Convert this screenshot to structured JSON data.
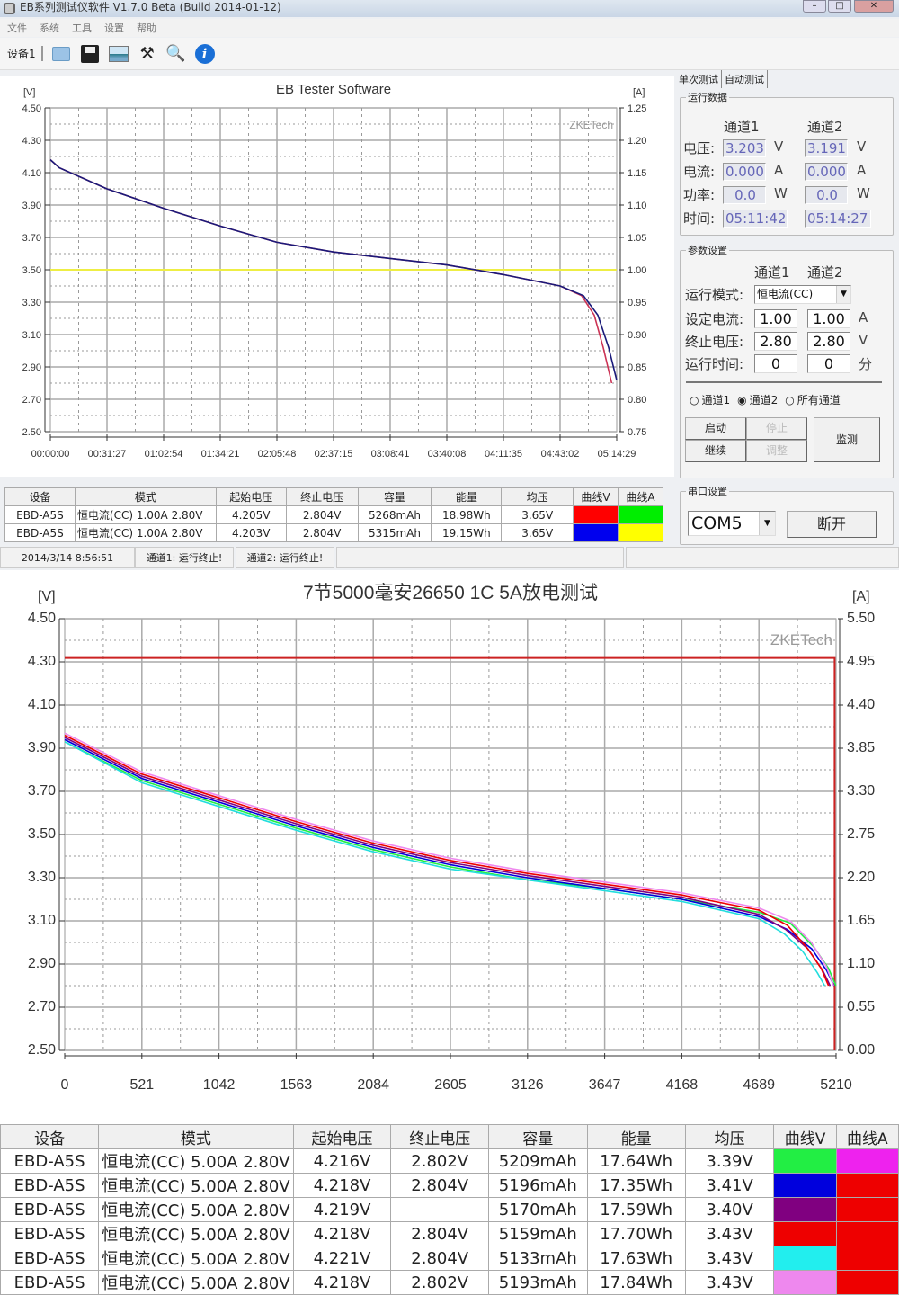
{
  "window": {
    "title": "EB系列测试仪软件 V1.7.0 Beta (Build 2014-01-12)",
    "menu": [
      "文件",
      "系统",
      "工具",
      "设置",
      "帮助"
    ],
    "toolbar": {
      "device_tab": "设备1",
      "icons": [
        "folder-icon",
        "save-icon",
        "chart-image-icon",
        "tools-icon",
        "search-icon",
        "info-icon"
      ]
    }
  },
  "panel": {
    "tabs": [
      "单次测试",
      "自动测试"
    ],
    "run_data": {
      "legend": "运行数据",
      "ch1": "通道1",
      "ch2": "通道2",
      "rows": [
        {
          "label": "电压:",
          "ch1": "3.203",
          "ch2": "3.191",
          "unit": "V"
        },
        {
          "label": "电流:",
          "ch1": "0.000",
          "ch2": "0.000",
          "unit": "A"
        },
        {
          "label": "功率:",
          "ch1": "0.0",
          "ch2": "0.0",
          "unit": "W"
        },
        {
          "label": "时间:",
          "ch1": "05:11:42",
          "ch2": "05:14:27",
          "unit": ""
        }
      ]
    },
    "params": {
      "legend": "参数设置",
      "ch1": "通道1",
      "ch2": "通道2",
      "mode_label": "运行模式:",
      "mode_value": "恒电流(CC)",
      "rows": [
        {
          "label": "设定电流:",
          "ch1": "1.00",
          "ch2": "1.00",
          "unit": "A"
        },
        {
          "label": "终止电压:",
          "ch1": "2.80",
          "ch2": "2.80",
          "unit": "V"
        },
        {
          "label": "运行时间:",
          "ch1": "0",
          "ch2": "0",
          "unit": "分"
        }
      ],
      "radios": [
        {
          "label": "通道1",
          "checked": false
        },
        {
          "label": "通道2",
          "checked": true
        },
        {
          "label": "所有通道",
          "checked": false
        }
      ],
      "start": "启动",
      "stop": "停止",
      "resume": "继续",
      "adjust": "调整",
      "monitor": "监测"
    },
    "serial": {
      "legend": "串口设置",
      "port": "COM5",
      "disconnect": "断开"
    }
  },
  "top_table": {
    "headers": [
      "设备",
      "模式",
      "起始电压",
      "终止电压",
      "容量",
      "能量",
      "均压",
      "曲线V",
      "曲线A"
    ],
    "rows": [
      {
        "cells": [
          "EBD-A5S",
          "恒电流(CC) 1.00A 2.80V",
          "4.205V",
          "2.804V",
          "5268mAh",
          "18.98Wh",
          "3.65V"
        ],
        "colorV": "#ff0000",
        "colorA": "#00ee00"
      },
      {
        "cells": [
          "EBD-A5S",
          "恒电流(CC) 1.00A 2.80V",
          "4.203V",
          "2.804V",
          "5315mAh",
          "19.15Wh",
          "3.65V"
        ],
        "colorV": "#0000ee",
        "colorA": "#ffff00"
      }
    ]
  },
  "status": [
    "2014/3/14 8:56:51",
    "通道1: 运行终止!",
    "通道2: 运行终止!"
  ],
  "bottom_table": {
    "headers": [
      "设备",
      "模式",
      "起始电压",
      "终止电压",
      "容量",
      "能量",
      "均压",
      "曲线V",
      "曲线A"
    ],
    "rows": [
      {
        "cells": [
          "EBD-A5S",
          "恒电流(CC) 5.00A 2.80V",
          "4.216V",
          "2.802V",
          "5209mAh",
          "17.64Wh",
          "3.39V"
        ],
        "colorV": "#22ee44",
        "colorA": "#ee22ee"
      },
      {
        "cells": [
          "EBD-A5S",
          "恒电流(CC) 5.00A 2.80V",
          "4.218V",
          "2.804V",
          "5196mAh",
          "17.35Wh",
          "3.41V"
        ],
        "colorV": "#0000dd",
        "colorA": "#ee0000"
      },
      {
        "cells": [
          "EBD-A5S",
          "恒电流(CC) 5.00A 2.80V",
          "4.219V",
          "",
          "5170mAh",
          "17.59Wh",
          "3.40V"
        ],
        "colorV": "#800080",
        "colorA": "#ee0000"
      },
      {
        "cells": [
          "EBD-A5S",
          "恒电流(CC) 5.00A 2.80V",
          "4.218V",
          "2.804V",
          "5159mAh",
          "17.70Wh",
          "3.43V"
        ],
        "colorV": "#ee0000",
        "colorA": "#ee0000"
      },
      {
        "cells": [
          "EBD-A5S",
          "恒电流(CC) 5.00A 2.80V",
          "4.221V",
          "2.804V",
          "5133mAh",
          "17.63Wh",
          "3.43V"
        ],
        "colorV": "#22eeee",
        "colorA": "#ee0000"
      },
      {
        "cells": [
          "EBD-A5S",
          "恒电流(CC) 5.00A 2.80V",
          "4.218V",
          "2.802V",
          "5193mAh",
          "17.84Wh",
          "3.43V"
        ],
        "colorV": "#ee88ee",
        "colorA": "#ee0000"
      }
    ]
  },
  "chart_data": [
    {
      "type": "line",
      "title": "EB Tester Software",
      "ylabel": "[V]",
      "y2label": "[A]",
      "watermark": "ZKETech",
      "xticks": [
        "00:00:00",
        "00:31:27",
        "01:02:54",
        "01:34:21",
        "02:05:48",
        "02:37:15",
        "03:08:41",
        "03:40:08",
        "04:11:35",
        "04:43:02",
        "05:14:29"
      ],
      "xlim": [
        "00:00:00",
        "05:14:29"
      ],
      "ylim": [
        2.5,
        4.5
      ],
      "yticks": [
        "4.50",
        "4.30",
        "4.10",
        "3.90",
        "3.70",
        "3.50",
        "3.30",
        "3.10",
        "2.90",
        "2.70",
        "2.50"
      ],
      "y2lim": [
        0.75,
        1.25
      ],
      "y2ticks": [
        "1.25",
        "1.20",
        "1.15",
        "1.10",
        "1.05",
        "1.00",
        "0.95",
        "0.90",
        "0.85",
        "0.80",
        "0.75"
      ],
      "grid": true,
      "series": [
        {
          "axis": "A",
          "color": "#00ee00",
          "points": [
            [
              "00:00:00",
              1.0
            ],
            [
              "05:11:42",
              1.0
            ]
          ]
        },
        {
          "axis": "A",
          "color": "#eeee44",
          "points": [
            [
              "00:00:00",
              1.0
            ],
            [
              "05:14:27",
              1.0
            ]
          ]
        },
        {
          "axis": "V",
          "color": "#cc3355",
          "points": [
            [
              "00:00:00",
              4.18
            ],
            [
              "00:05:00",
              4.13
            ],
            [
              "00:31:27",
              4.0
            ],
            [
              "01:02:54",
              3.88
            ],
            [
              "01:34:21",
              3.77
            ],
            [
              "02:05:48",
              3.67
            ],
            [
              "02:37:15",
              3.61
            ],
            [
              "03:08:41",
              3.57
            ],
            [
              "03:40:08",
              3.53
            ],
            [
              "04:11:35",
              3.47
            ],
            [
              "04:43:02",
              3.4
            ],
            [
              "04:55:00",
              3.34
            ],
            [
              "05:02:00",
              3.22
            ],
            [
              "05:07:00",
              3.02
            ],
            [
              "05:11:42",
              2.8
            ]
          ]
        },
        {
          "axis": "V",
          "color": "#1a1a7a",
          "points": [
            [
              "00:00:00",
              4.18
            ],
            [
              "00:05:00",
              4.13
            ],
            [
              "00:31:27",
              4.0
            ],
            [
              "01:02:54",
              3.88
            ],
            [
              "01:34:21",
              3.77
            ],
            [
              "02:05:48",
              3.67
            ],
            [
              "02:37:15",
              3.61
            ],
            [
              "03:08:41",
              3.57
            ],
            [
              "03:40:08",
              3.53
            ],
            [
              "04:11:35",
              3.47
            ],
            [
              "04:43:02",
              3.4
            ],
            [
              "04:56:00",
              3.34
            ],
            [
              "05:04:00",
              3.22
            ],
            [
              "05:10:00",
              3.02
            ],
            [
              "05:14:27",
              2.82
            ]
          ]
        }
      ]
    },
    {
      "type": "line",
      "title": "7节5000毫安26650 1C 5A放电测试",
      "ylabel": "[V]",
      "y2label": "[A]",
      "watermark": "ZKETech",
      "xticks": [
        "0",
        "521",
        "1042",
        "1563",
        "2084",
        "2605",
        "3126",
        "3647",
        "4168",
        "4689",
        "5210"
      ],
      "xlim": [
        0,
        5210
      ],
      "ylim": [
        2.5,
        4.5
      ],
      "yticks": [
        "4.50",
        "4.30",
        "4.10",
        "3.90",
        "3.70",
        "3.50",
        "3.30",
        "3.10",
        "2.90",
        "2.70",
        "2.50"
      ],
      "y2lim": [
        0,
        5.5
      ],
      "y2ticks": [
        "5.50",
        "4.95",
        "4.40",
        "3.85",
        "3.30",
        "2.75",
        "2.20",
        "1.65",
        "1.10",
        "0.55",
        "0.00"
      ],
      "grid": true,
      "series": [
        {
          "axis": "A",
          "color": "#cc2222",
          "points": [
            [
              0,
              5.0
            ],
            [
              5200,
              5.0
            ],
            [
              5200,
              0
            ]
          ]
        },
        {
          "axis": "V",
          "color": "#22ee44",
          "points": [
            [
              0,
              3.93
            ],
            [
              521,
              3.75
            ],
            [
              1042,
              3.64
            ],
            [
              1563,
              3.53
            ],
            [
              2084,
              3.43
            ],
            [
              2605,
              3.35
            ],
            [
              3126,
              3.29
            ],
            [
              3647,
              3.25
            ],
            [
              4168,
              3.2
            ],
            [
              4689,
              3.14
            ],
            [
              4900,
              3.09
            ],
            [
              5059,
              2.98
            ],
            [
              5159,
              2.88
            ],
            [
              5209,
              2.8
            ]
          ]
        },
        {
          "axis": "V",
          "color": "#0000dd",
          "points": [
            [
              0,
              3.94
            ],
            [
              521,
              3.76
            ],
            [
              1042,
              3.65
            ],
            [
              1563,
              3.54
            ],
            [
              2084,
              3.44
            ],
            [
              2605,
              3.36
            ],
            [
              3126,
              3.3
            ],
            [
              3647,
              3.25
            ],
            [
              4168,
              3.2
            ],
            [
              4689,
              3.12
            ],
            [
              4880,
              3.06
            ],
            [
              5046,
              2.97
            ],
            [
              5146,
              2.87
            ],
            [
              5196,
              2.8
            ]
          ]
        },
        {
          "axis": "V",
          "color": "#800080",
          "points": [
            [
              0,
              3.95
            ],
            [
              521,
              3.77
            ],
            [
              1042,
              3.66
            ],
            [
              1563,
              3.55
            ],
            [
              2084,
              3.45
            ],
            [
              2605,
              3.37
            ],
            [
              3126,
              3.31
            ],
            [
              3647,
              3.26
            ],
            [
              4168,
              3.21
            ],
            [
              4689,
              3.13
            ],
            [
              4870,
              3.06
            ],
            [
              5020,
              2.97
            ],
            [
              5120,
              2.87
            ],
            [
              5170,
              2.8
            ]
          ]
        },
        {
          "axis": "V",
          "color": "#ee0000",
          "points": [
            [
              0,
              3.96
            ],
            [
              521,
              3.78
            ],
            [
              1042,
              3.67
            ],
            [
              1563,
              3.56
            ],
            [
              2084,
              3.46
            ],
            [
              2605,
              3.38
            ],
            [
              3126,
              3.32
            ],
            [
              3647,
              3.27
            ],
            [
              4168,
              3.22
            ],
            [
              4689,
              3.15
            ],
            [
              4880,
              3.08
            ],
            [
              5009,
              2.98
            ],
            [
              5109,
              2.88
            ],
            [
              5159,
              2.8
            ]
          ]
        },
        {
          "axis": "V",
          "color": "#22dddd",
          "points": [
            [
              0,
              3.93
            ],
            [
              521,
              3.74
            ],
            [
              1042,
              3.63
            ],
            [
              1563,
              3.52
            ],
            [
              2084,
              3.42
            ],
            [
              2605,
              3.34
            ],
            [
              3126,
              3.29
            ],
            [
              3647,
              3.24
            ],
            [
              4168,
              3.19
            ],
            [
              4689,
              3.11
            ],
            [
              4860,
              3.04
            ],
            [
              4983,
              2.96
            ],
            [
              5083,
              2.86
            ],
            [
              5133,
              2.8
            ]
          ]
        },
        {
          "axis": "V",
          "color": "#ee88ee",
          "points": [
            [
              0,
              3.97
            ],
            [
              521,
              3.79
            ],
            [
              1042,
              3.68
            ],
            [
              1563,
              3.57
            ],
            [
              2084,
              3.47
            ],
            [
              2605,
              3.39
            ],
            [
              3126,
              3.33
            ],
            [
              3647,
              3.28
            ],
            [
              4168,
              3.23
            ],
            [
              4689,
              3.16
            ],
            [
              4900,
              3.1
            ],
            [
              5043,
              3.0
            ],
            [
              5143,
              2.89
            ],
            [
              5193,
              2.8
            ]
          ]
        }
      ]
    }
  ]
}
